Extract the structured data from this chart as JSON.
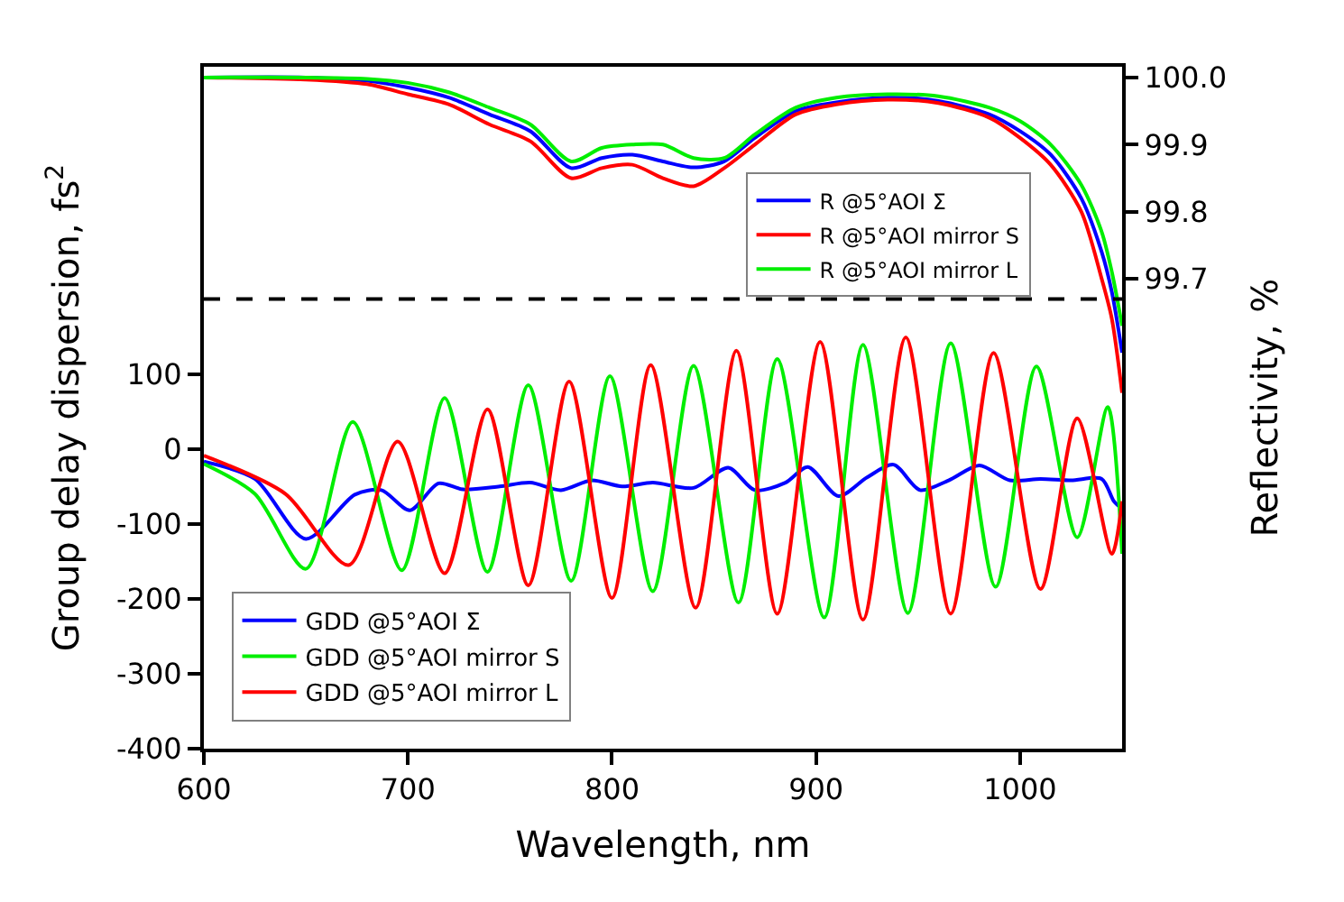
{
  "chart_data": {
    "type": "line",
    "xlabel": "Wavelength, nm",
    "ylabel": "Group delay dispersion, fs$^{2}$",
    "y2label": "Reflectivity, %",
    "xlim": [
      600,
      1050
    ],
    "xticks": [
      600,
      700,
      800,
      900,
      1000
    ],
    "ylim": [
      -400,
      510
    ],
    "yticks": [
      -400,
      -300,
      -200,
      -100,
      0,
      100
    ],
    "y2lim": [
      99.0,
      100.016
    ],
    "y2ticks": [
      {
        "value": 99.7,
        "label": "99.7"
      },
      {
        "value": 99.8,
        "label": "99.8"
      },
      {
        "value": 99.9,
        "label": "99.9"
      },
      {
        "value": 100.0,
        "label": "100.0"
      }
    ],
    "legend": "bottom left",
    "marker": "none",
    "line_style": "solid",
    "ref_lines": [
      {
        "axis": "y2",
        "value": 99.67,
        "color": "#000000",
        "line_style": "dashed"
      }
    ],
    "series": [
      {
        "name": "R @5°AOI Σ",
        "color": "#0000ff",
        "axis": "y2",
        "x": [
          600,
          650,
          680,
          700,
          720,
          740,
          760,
          780,
          795,
          810,
          825,
          840,
          855,
          870,
          890,
          910,
          935,
          960,
          985,
          1000,
          1015,
          1030,
          1040,
          1045,
          1050
        ],
        "values": [
          100.0,
          100.0,
          99.995,
          99.985,
          99.97,
          99.945,
          99.92,
          99.865,
          99.88,
          99.885,
          99.875,
          99.866,
          99.875,
          99.91,
          99.95,
          99.963,
          99.97,
          99.965,
          99.945,
          99.92,
          99.885,
          99.82,
          99.74,
          99.68,
          99.59
        ]
      },
      {
        "name": "R @5°AOI mirror S",
        "color": "#ff0000",
        "axis": "y2",
        "x": [
          600,
          650,
          680,
          700,
          720,
          740,
          760,
          780,
          795,
          810,
          825,
          840,
          855,
          870,
          890,
          910,
          935,
          960,
          985,
          1000,
          1015,
          1030,
          1040,
          1045,
          1050
        ],
        "values": [
          100.0,
          99.997,
          99.99,
          99.975,
          99.96,
          99.93,
          99.905,
          99.85,
          99.865,
          99.87,
          99.85,
          99.838,
          99.865,
          99.9,
          99.945,
          99.96,
          99.967,
          99.962,
          99.94,
          99.91,
          99.87,
          99.8,
          99.7,
          99.64,
          99.53
        ]
      },
      {
        "name": "R @5°AOI mirror L",
        "color": "#00ee00",
        "axis": "y2",
        "x": [
          600,
          650,
          680,
          700,
          720,
          740,
          760,
          780,
          795,
          810,
          825,
          840,
          855,
          870,
          890,
          910,
          935,
          960,
          985,
          1000,
          1015,
          1030,
          1040,
          1045,
          1050
        ],
        "values": [
          100.0,
          100.0,
          99.998,
          99.992,
          99.978,
          99.955,
          99.93,
          99.875,
          99.895,
          99.9,
          99.9,
          99.88,
          99.88,
          99.915,
          99.955,
          99.97,
          99.975,
          99.972,
          99.955,
          99.935,
          99.9,
          99.84,
          99.77,
          99.71,
          99.63
        ]
      },
      {
        "name": "GDD @5°AOI Σ",
        "color": "#0000ff",
        "x": [
          600,
          625,
          650,
          674,
          687,
          701,
          715,
          727,
          745,
          760,
          775,
          790,
          805,
          820,
          840,
          857,
          870,
          885,
          896,
          911,
          925,
          938,
          951,
          965,
          980,
          995,
          1010,
          1025,
          1040,
          1046,
          1050
        ],
        "values": [
          -17,
          -40,
          -120,
          -61,
          -55,
          -82,
          -46,
          -54,
          -50,
          -45,
          -55,
          -42,
          -50,
          -45,
          -52,
          -25,
          -55,
          -45,
          -24,
          -63,
          -38,
          -21,
          -55,
          -42,
          -22,
          -42,
          -40,
          -42,
          -40,
          -70,
          -80
        ]
      },
      {
        "name": "GDD @5°AOI mirror S",
        "color": "#00ee00",
        "x": [
          600,
          625,
          650,
          673,
          697,
          718,
          739,
          759,
          780,
          799,
          820,
          840,
          862,
          881,
          904,
          923,
          945,
          966,
          988,
          1008,
          1028,
          1043,
          1050
        ],
        "values": [
          -20,
          -60,
          -160,
          36,
          -162,
          68,
          -164,
          85,
          -176,
          97,
          -190,
          111,
          -205,
          120,
          -225,
          139,
          -219,
          141,
          -184,
          110,
          -118,
          56,
          -140
        ]
      },
      {
        "name": "GDD @5°AOI mirror L",
        "color": "#ff0000",
        "x": [
          600,
          640,
          671,
          695,
          718,
          739,
          759,
          779,
          800,
          819,
          841,
          861,
          881,
          902,
          923,
          944,
          966,
          987,
          1010,
          1028,
          1045,
          1050
        ],
        "values": [
          -9,
          -60,
          -155,
          10,
          -166,
          53,
          -182,
          90,
          -199,
          112,
          -212,
          131,
          -220,
          143,
          -228,
          149,
          -220,
          128,
          -187,
          41,
          -140,
          -70
        ]
      }
    ]
  }
}
